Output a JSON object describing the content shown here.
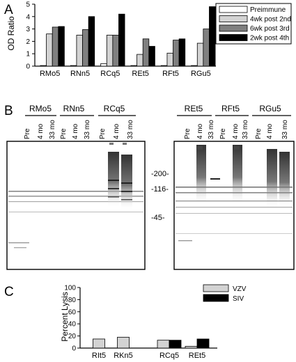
{
  "panels": {
    "a": "A",
    "b": "B",
    "c": "C"
  },
  "chart_data": [
    {
      "type": "bar",
      "panel": "A",
      "ylabel": "OD Ratio",
      "ylim": [
        0,
        5
      ],
      "yticks": [
        "0",
        "1",
        "2",
        "3",
        "4",
        "5"
      ],
      "categories": [
        "RMo5",
        "RNn5",
        "RCq5",
        "REt5",
        "RFt5",
        "RGu5"
      ],
      "legend_position": "top-right",
      "series": [
        {
          "name": "Preimmune",
          "color": "#ffffff",
          "values": [
            0.05,
            0.05,
            0.2,
            0.05,
            0.05,
            0.05
          ]
        },
        {
          "name": "4wk post 2nd",
          "color": "#d3d3d3",
          "values": [
            2.6,
            2.5,
            2.5,
            0.95,
            1.05,
            1.85
          ]
        },
        {
          "name": "6wk post 3rd",
          "color": "#808080",
          "values": [
            3.15,
            2.95,
            2.5,
            2.2,
            2.1,
            3.0
          ]
        },
        {
          "name": "2wk post 4th",
          "color": "#000000",
          "values": [
            3.2,
            4.0,
            4.2,
            1.6,
            2.2,
            4.8
          ]
        }
      ]
    },
    {
      "type": "bar",
      "panel": "C",
      "ylabel": "Percent Lysis",
      "ylim": [
        0,
        100
      ],
      "yticks": [
        "0",
        "20",
        "40",
        "60",
        "80",
        "100"
      ],
      "categories": [
        "RIt5",
        "RKn5",
        "RCq5",
        "REt5"
      ],
      "legend_position": "top-right",
      "series": [
        {
          "name": "VZV",
          "color": "#d3d3d3",
          "values": [
            15,
            18,
            13,
            3
          ]
        },
        {
          "name": "SIV",
          "color": "#000000",
          "values": [
            0,
            0,
            13,
            15
          ]
        }
      ]
    }
  ],
  "blot": {
    "left_samples": [
      "RMo5",
      "RNn5",
      "RCq5"
    ],
    "right_samples": [
      "REt5",
      "RFt5",
      "RGu5"
    ],
    "lanes": [
      "Pre",
      "4 mo",
      "33 mo"
    ],
    "markers": [
      "-200-",
      "-116-",
      "-45-"
    ]
  }
}
